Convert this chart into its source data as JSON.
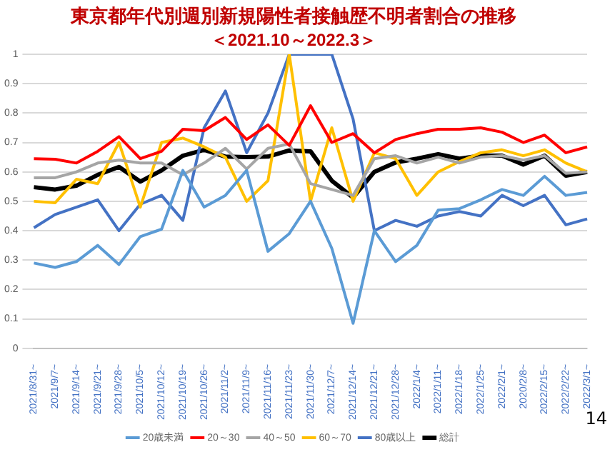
{
  "chart_data": {
    "type": "line",
    "title": "東京都年代別週別新規陽性者接触歴不明者割合の推移",
    "subtitle": "＜2021.10～2022.3＞",
    "categories": [
      "2021/8/31~",
      "2021/9/7~",
      "2021/9/14~",
      "2021/9/21~",
      "2021/9/28~",
      "2021/10/5~",
      "2021/10/12~",
      "2021/10/19~",
      "2021/10/26~",
      "2021/11/2~",
      "2021/11/9~",
      "2021/11/16~",
      "2021/11/23~",
      "2021/11/30~",
      "2021/12/7~",
      "2021/12/14~",
      "2021/12/21~",
      "2021/12/28~",
      "2022/1/4~",
      "2022/1/11~",
      "2022/1/18~",
      "2022/1/25~",
      "2022/2/1~",
      "2020/2/8~",
      "2022/2/15~",
      "2022/2/22~",
      "2022/3/1~"
    ],
    "series": [
      {
        "name": "20歳未満",
        "color": "#5b9bd5",
        "values": [
          0.29,
          0.275,
          0.295,
          0.35,
          0.285,
          0.38,
          0.405,
          0.605,
          0.48,
          0.52,
          0.605,
          0.33,
          0.39,
          0.5,
          0.34,
          0.085,
          0.4,
          0.295,
          0.35,
          0.47,
          0.475,
          0.505,
          0.54,
          0.52,
          0.585,
          0.52,
          0.53
        ]
      },
      {
        "name": "20～30",
        "color": "#ff0000",
        "values": [
          0.645,
          0.643,
          0.63,
          0.67,
          0.72,
          0.645,
          0.67,
          0.745,
          0.74,
          0.785,
          0.71,
          0.76,
          0.69,
          0.825,
          0.7,
          0.73,
          0.665,
          0.71,
          0.73,
          0.745,
          0.745,
          0.75,
          0.735,
          0.7,
          0.725,
          0.665,
          0.685
        ]
      },
      {
        "name": "40～50",
        "color": "#a5a5a5",
        "values": [
          0.58,
          0.58,
          0.6,
          0.63,
          0.64,
          0.63,
          0.63,
          0.59,
          0.63,
          0.68,
          0.61,
          0.68,
          0.695,
          0.56,
          0.54,
          0.52,
          0.645,
          0.655,
          0.63,
          0.65,
          0.63,
          0.65,
          0.655,
          0.64,
          0.655,
          0.595,
          0.6
        ]
      },
      {
        "name": "60～70",
        "color": "#ffc000",
        "values": [
          0.5,
          0.495,
          0.575,
          0.56,
          0.7,
          0.48,
          0.7,
          0.715,
          0.685,
          0.65,
          0.5,
          0.57,
          1,
          0.5,
          0.75,
          0.5,
          0.665,
          0.645,
          0.52,
          0.6,
          0.635,
          0.665,
          0.675,
          0.655,
          0.675,
          0.63,
          0.6
        ]
      },
      {
        "name": "80歳以上",
        "color": "#4472c4",
        "values": [
          0.41,
          0.455,
          0.48,
          0.505,
          0.4,
          0.49,
          0.52,
          0.435,
          0.75,
          0.875,
          0.665,
          0.8,
          1,
          1,
          1,
          0.78,
          0.4,
          0.435,
          0.415,
          0.45,
          0.465,
          0.45,
          0.52,
          0.485,
          0.52,
          0.42,
          0.44
        ]
      },
      {
        "name": "総計",
        "color": "#000000",
        "values": [
          0.548,
          0.54,
          0.553,
          0.59,
          0.617,
          0.567,
          0.605,
          0.655,
          0.675,
          0.652,
          0.65,
          0.652,
          0.673,
          0.67,
          0.57,
          0.513,
          0.6,
          0.632,
          0.645,
          0.66,
          0.645,
          0.655,
          0.655,
          0.625,
          0.655,
          0.587,
          0.6
        ]
      }
    ],
    "ylim": [
      0,
      1
    ],
    "yticks": [
      0,
      0.1,
      0.2,
      0.3,
      0.4,
      0.5,
      0.6,
      0.7,
      0.8,
      0.9,
      1
    ],
    "grid": "y",
    "legend": "bottom",
    "marker": "none",
    "line_style": "solid",
    "annotations": [
      "14"
    ]
  }
}
